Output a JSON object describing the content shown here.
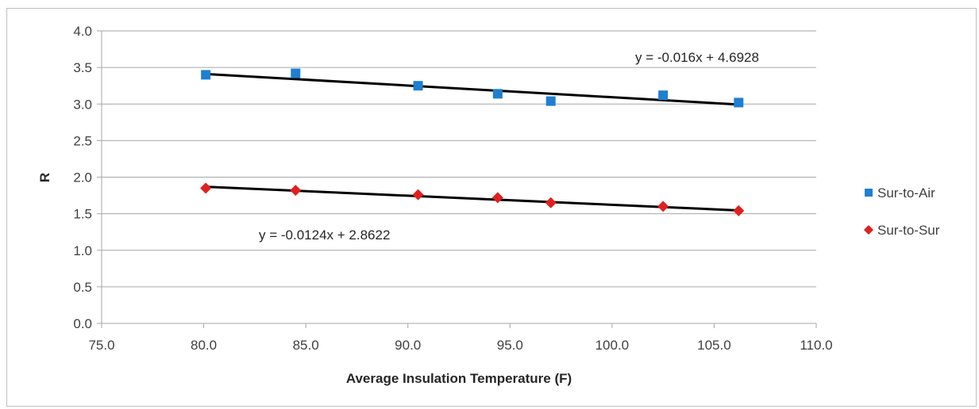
{
  "chart_data": {
    "type": "scatter",
    "title": "",
    "xlabel": "Average Insulation Temperature (F)",
    "ylabel": "R",
    "xlim": [
      75.0,
      110.0
    ],
    "ylim": [
      0.0,
      4.0
    ],
    "x_ticks": [
      "75.0",
      "80.0",
      "85.0",
      "90.0",
      "95.0",
      "100.0",
      "105.0",
      "110.0"
    ],
    "y_ticks": [
      "0.0",
      "0.5",
      "1.0",
      "1.5",
      "2.0",
      "2.5",
      "3.0",
      "3.5",
      "4.0"
    ],
    "grid": "horizontal",
    "legend_position": "right",
    "series": [
      {
        "name": "Sur-to-Air",
        "marker": "square",
        "color": "#1f7fd0",
        "x": [
          80.1,
          84.5,
          90.5,
          94.4,
          97.0,
          102.5,
          106.2
        ],
        "y": [
          3.4,
          3.42,
          3.25,
          3.14,
          3.04,
          3.12,
          3.02
        ],
        "trendline": {
          "slope": -0.016,
          "intercept": 4.6928,
          "color": "#000000",
          "equation": "y = -0.016x + 4.6928"
        }
      },
      {
        "name": "Sur-to-Sur",
        "marker": "diamond",
        "color": "#e02020",
        "x": [
          80.1,
          84.5,
          90.5,
          94.4,
          97.0,
          102.5,
          106.2
        ],
        "y": [
          1.85,
          1.82,
          1.76,
          1.72,
          1.65,
          1.6,
          1.54
        ],
        "trendline": {
          "slope": -0.0124,
          "intercept": 2.8622,
          "color": "#000000",
          "equation": "y = -0.0124x + 2.8622"
        }
      }
    ]
  }
}
